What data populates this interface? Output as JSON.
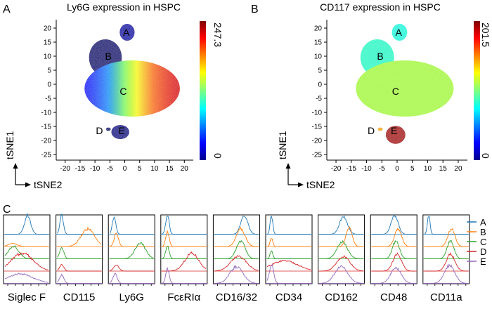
{
  "figure": {
    "panel_labels": [
      "A",
      "B",
      "C"
    ]
  },
  "chart_data": [
    {
      "type": "scatter",
      "panel": "A",
      "title": "Ly6G expression in HSPC",
      "xlabel": "tSNE2",
      "ylabel": "tSNE1",
      "xticks": [
        -20,
        -15,
        -10,
        -5,
        0,
        5,
        10,
        15,
        20
      ],
      "yticks": [
        20,
        15,
        10,
        5,
        0,
        -5,
        -10,
        -15,
        -20,
        -25
      ],
      "xlim": [
        -23,
        23
      ],
      "ylim": [
        -27,
        23
      ],
      "colorbar": {
        "max_label": "247.3",
        "min_label": "0"
      },
      "cluster_labels": [
        {
          "text": "A",
          "x": 0.5,
          "y": 18.5
        },
        {
          "text": "B",
          "x": -5.5,
          "y": 10
        },
        {
          "text": "C",
          "x": -0.5,
          "y": -2.5
        },
        {
          "text": "D",
          "x": -8.5,
          "y": -16.5
        },
        {
          "text": "E",
          "x": -1,
          "y": -16.5
        }
      ],
      "clusters": [
        {
          "name": "A",
          "cx": 0.8,
          "cy": 18.5,
          "rx": 2.5,
          "ry": 3.0,
          "t": 0.05
        },
        {
          "name": "B",
          "cx": -6.5,
          "cy": 9.5,
          "rx": 5.5,
          "ry": 6.5,
          "t": 0.0
        },
        {
          "name": "C",
          "cx": 2.5,
          "cy": -1.5,
          "rx": 16,
          "ry": 10,
          "t": "gradient"
        },
        {
          "name": "E",
          "cx": -1.5,
          "cy": -17,
          "rx": 3.0,
          "ry": 2.5,
          "t": 0.02
        },
        {
          "name": "D",
          "cx": -5.5,
          "cy": -16,
          "rx": 0.8,
          "ry": 0.6,
          "t": 0.0
        }
      ]
    },
    {
      "type": "scatter",
      "panel": "B",
      "title": "CD117 expression in HSPC",
      "xlabel": "tSNE2",
      "ylabel": "tSNE1",
      "xticks": [
        -20,
        -15,
        -10,
        -5,
        0,
        5,
        10,
        15,
        20
      ],
      "yticks": [
        20,
        15,
        10,
        5,
        0,
        -5,
        -10,
        -15,
        -20,
        -25
      ],
      "xlim": [
        -23,
        23
      ],
      "ylim": [
        -27,
        23
      ],
      "colorbar": {
        "max_label": "201.5",
        "min_label": "0"
      },
      "cluster_labels": [
        {
          "text": "A",
          "x": 0.5,
          "y": 18.5
        },
        {
          "text": "B",
          "x": -5.5,
          "y": 10
        },
        {
          "text": "C",
          "x": -0.5,
          "y": -2.5
        },
        {
          "text": "D",
          "x": -8.5,
          "y": -16.5
        },
        {
          "text": "E",
          "x": -1,
          "y": -16.5
        }
      ],
      "clusters": [
        {
          "name": "A",
          "cx": 0.8,
          "cy": 18.5,
          "rx": 2.5,
          "ry": 3.0,
          "t": 0.4
        },
        {
          "name": "B",
          "cx": -6.5,
          "cy": 9.5,
          "rx": 5.5,
          "ry": 6.5,
          "t": 0.42
        },
        {
          "name": "C",
          "cx": 2.5,
          "cy": -1.5,
          "rx": 16,
          "ry": 10,
          "t": 0.55
        },
        {
          "name": "E",
          "cx": -0.5,
          "cy": -18,
          "rx": 3.2,
          "ry": 3.2,
          "t": 0.95
        },
        {
          "name": "D",
          "cx": -5.5,
          "cy": -16,
          "rx": 0.8,
          "ry": 0.6,
          "t": 0.7
        }
      ]
    },
    {
      "type": "histogram",
      "panel": "C",
      "legend": {
        "placement": "right",
        "entries": [
          "A",
          "B",
          "C",
          "D",
          "E"
        ]
      },
      "series_colors": [
        "#1f77b4",
        "#ff7f0e",
        "#2ca02c",
        "#d62728",
        "#9467bd"
      ],
      "markers": [
        {
          "name": "Siglec F",
          "peaks": [
            {
              "pos": 0.52,
              "h": 0.9,
              "w": 0.07
            },
            {
              "pos": 0.18,
              "h": 0.15,
              "w": 0.1
            },
            {
              "pos": 0.2,
              "h": 0.6,
              "w": 0.12
            },
            {
              "pos": 0.4,
              "h": 0.85,
              "w": 0.25
            },
            {
              "pos": 0.35,
              "h": 0.45,
              "w": 0.3
            }
          ]
        },
        {
          "name": "CD115",
          "peaks": [
            {
              "pos": 0.1,
              "h": 0.9,
              "w": 0.04
            },
            {
              "pos": 0.7,
              "h": 0.85,
              "w": 0.15
            },
            {
              "pos": 0.1,
              "h": 0.5,
              "w": 0.05
            },
            {
              "pos": 0.1,
              "h": 0.3,
              "w": 0.05
            },
            {
              "pos": 0.1,
              "h": 0.4,
              "w": 0.05
            }
          ]
        },
        {
          "name": "Ly6G",
          "peaks": [
            {
              "pos": 0.1,
              "h": 0.85,
              "w": 0.04
            },
            {
              "pos": 0.15,
              "h": 0.6,
              "w": 0.05
            },
            {
              "pos": 0.7,
              "h": 0.75,
              "w": 0.12
            },
            {
              "pos": 0.15,
              "h": 0.3,
              "w": 0.06
            },
            {
              "pos": 0.12,
              "h": 0.45,
              "w": 0.05
            }
          ]
        },
        {
          "name": "FcεRIα",
          "peaks": [
            {
              "pos": 0.12,
              "h": 0.9,
              "w": 0.04
            },
            {
              "pos": 0.12,
              "h": 0.7,
              "w": 0.04
            },
            {
              "pos": 0.12,
              "h": 0.6,
              "w": 0.04
            },
            {
              "pos": 0.68,
              "h": 0.85,
              "w": 0.16
            },
            {
              "pos": 0.12,
              "h": 0.7,
              "w": 0.04
            }
          ]
        },
        {
          "name": "CD16/32",
          "peaks": [
            {
              "pos": 0.68,
              "h": 0.9,
              "w": 0.08
            },
            {
              "pos": 0.6,
              "h": 0.85,
              "w": 0.1
            },
            {
              "pos": 0.6,
              "h": 0.85,
              "w": 0.1
            },
            {
              "pos": 0.55,
              "h": 0.7,
              "w": 0.18
            },
            {
              "pos": 0.5,
              "h": 0.8,
              "w": 0.15
            }
          ]
        },
        {
          "name": "CD34",
          "peaks": [
            {
              "pos": 0.1,
              "h": 0.9,
              "w": 0.03
            },
            {
              "pos": 0.1,
              "h": 0.4,
              "w": 0.03
            },
            {
              "pos": 0.1,
              "h": 0.4,
              "w": 0.03
            },
            {
              "pos": 0.4,
              "h": 0.5,
              "w": 0.3
            },
            {
              "pos": 0.1,
              "h": 0.9,
              "w": 0.05
            }
          ]
        },
        {
          "name": "CD162",
          "peaks": [
            {
              "pos": 0.55,
              "h": 0.85,
              "w": 0.09
            },
            {
              "pos": 0.68,
              "h": 0.9,
              "w": 0.07
            },
            {
              "pos": 0.52,
              "h": 0.8,
              "w": 0.12
            },
            {
              "pos": 0.55,
              "h": 0.7,
              "w": 0.15
            },
            {
              "pos": 0.5,
              "h": 0.8,
              "w": 0.15
            }
          ]
        },
        {
          "name": "CD48",
          "peaks": [
            {
              "pos": 0.52,
              "h": 0.9,
              "w": 0.08
            },
            {
              "pos": 0.6,
              "h": 0.85,
              "w": 0.08
            },
            {
              "pos": 0.55,
              "h": 0.85,
              "w": 0.08
            },
            {
              "pos": 0.58,
              "h": 0.8,
              "w": 0.1
            },
            {
              "pos": 0.55,
              "h": 0.75,
              "w": 0.12
            }
          ]
        },
        {
          "name": "CD11a",
          "peaks": [
            {
              "pos": 0.1,
              "h": 0.9,
              "w": 0.03
            },
            {
              "pos": 0.62,
              "h": 0.85,
              "w": 0.08
            },
            {
              "pos": 0.6,
              "h": 0.85,
              "w": 0.08
            },
            {
              "pos": 0.6,
              "h": 0.8,
              "w": 0.1
            },
            {
              "pos": 0.58,
              "h": 0.85,
              "w": 0.12
            }
          ]
        }
      ]
    }
  ]
}
